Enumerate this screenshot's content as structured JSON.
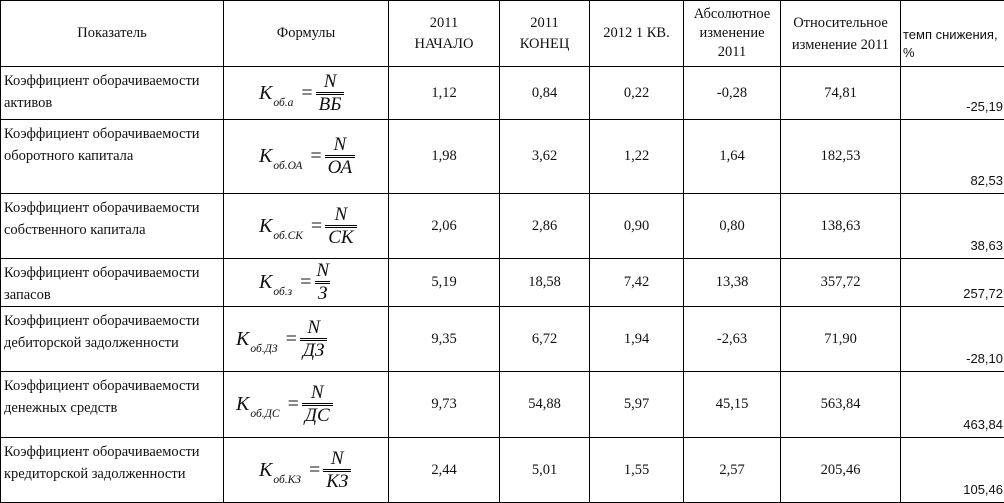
{
  "headers": {
    "indicator": "Показатель",
    "formulas": "Формулы",
    "y2011_start_1": "2011",
    "y2011_start_2": "НАЧАЛО",
    "y2011_end_1": "2011",
    "y2011_end_2": "КОНЕЦ",
    "y2012_q1": "2012 1 КВ.",
    "abs_change": "Абсолютное изменение 2011",
    "rel_change": "Относительное изменение 2011",
    "rate": "темп снижения, %"
  },
  "rows": [
    {
      "name": "Коэффициент оборачиваемости активов",
      "f_k": "K",
      "f_sub": "об.а",
      "f_num": "N",
      "f_den": "ВБ",
      "start": "1,12",
      "end": "0,84",
      "q1": "0,22",
      "abs": "-0,28",
      "rel": "74,81",
      "rate": "-25,19"
    },
    {
      "name": "Коэффициент оборачиваемости оборотного капитала",
      "f_k": "K",
      "f_sub": "об.ОА",
      "f_num": "N",
      "f_den": "ОА",
      "start": "1,98",
      "end": "3,62",
      "q1": "1,22",
      "abs": "1,64",
      "rel": "182,53",
      "rate": "82,53"
    },
    {
      "name": "Коэффициент оборачиваемости собственного капитала",
      "f_k": "K",
      "f_sub": "об.СК",
      "f_num": "N",
      "f_den": "СК",
      "start": "2,06",
      "end": "2,86",
      "q1": "0,90",
      "abs": "0,80",
      "rel": "138,63",
      "rate": "38,63"
    },
    {
      "name": "Коэффициент оборачиваемости запасов",
      "f_k": "K",
      "f_sub": "об.з",
      "f_num": "N",
      "f_den": "З",
      "start": "5,19",
      "end": "18,58",
      "q1": "7,42",
      "abs": "13,38",
      "rel": "357,72",
      "rate": "257,72"
    },
    {
      "name": "Коэффициент оборачиваемости дебиторской задолженности",
      "f_k": "K",
      "f_sub": "об.ДЗ",
      "f_num": "N",
      "f_den": "ДЗ",
      "start": "9,35",
      "end": "6,72",
      "q1": "1,94",
      "abs": "-2,63",
      "rel": "71,90",
      "rate": "-28,10"
    },
    {
      "name": "Коэффициент оборачиваемости денежных средств",
      "f_k": "K",
      "f_sub": "об.ДС",
      "f_num": "N",
      "f_den": "ДС",
      "start": "9,73",
      "end": "54,88",
      "q1": "5,97",
      "abs": "45,15",
      "rel": "563,84",
      "rate": "463,84"
    },
    {
      "name": "Коэффициент оборачиваемости кредиторской задолженности",
      "f_k": "K",
      "f_sub": "об.КЗ",
      "f_num": "N",
      "f_den": "КЗ",
      "start": "2,44",
      "end": "5,01",
      "q1": "1,55",
      "abs": "2,57",
      "rel": "205,46",
      "rate": "105,46"
    }
  ]
}
